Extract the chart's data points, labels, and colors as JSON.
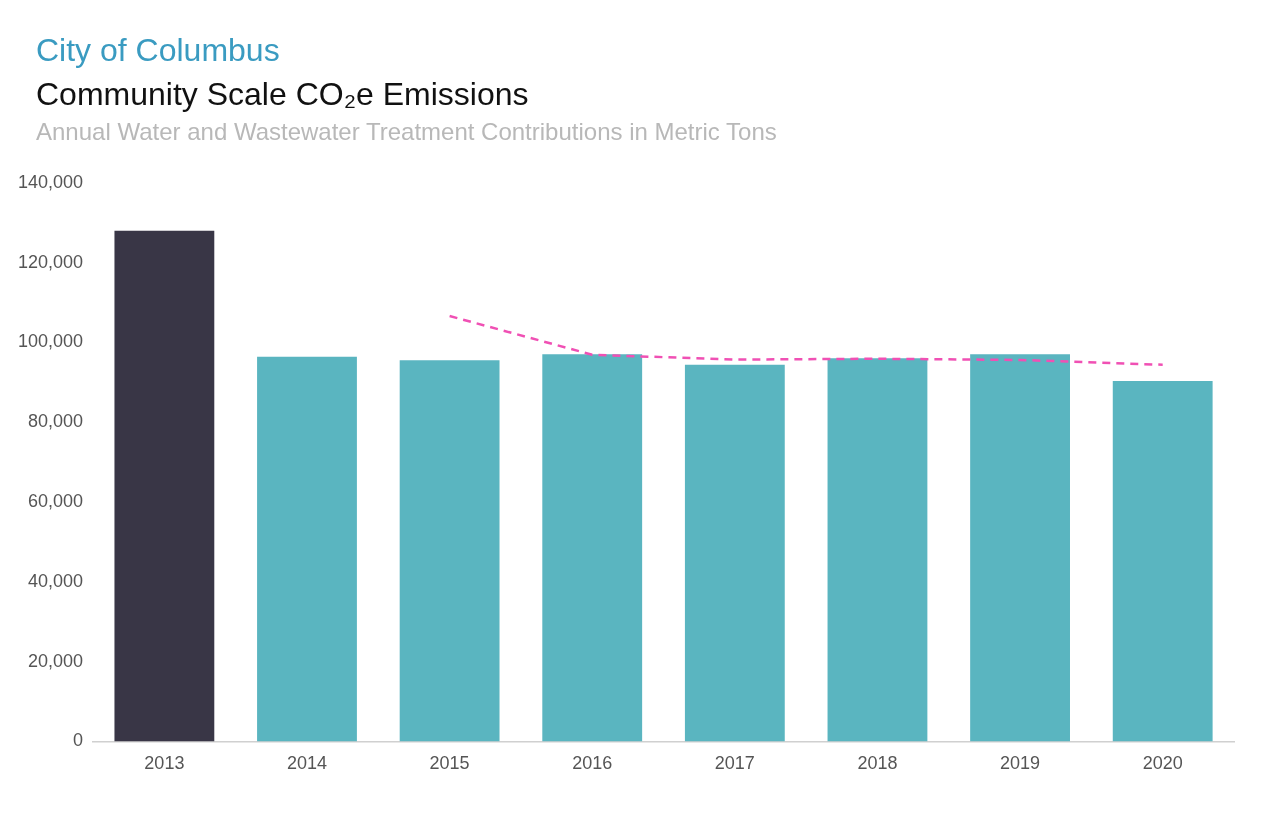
{
  "chart_data": {
    "type": "bar",
    "title": "City of Columbus",
    "subtitle": "Community Scale CO₂e Emissions",
    "annotations": [
      "Annual Water and Wastewater Treatment Contributions in Metric Tons"
    ],
    "categories": [
      "2013",
      "2014",
      "2015",
      "2016",
      "2017",
      "2018",
      "2019",
      "2020"
    ],
    "series": [
      {
        "colors": [
          "#393646",
          "#5ab5c0",
          "#5ab5c0",
          "#5ab5c0",
          "#5ab5c0",
          "#5ab5c0",
          "#5ab5c0",
          "#5ab5c0"
        ],
        "values": [
          128000,
          96400,
          95500,
          97000,
          94400,
          96000,
          97000,
          90300
        ]
      },
      {
        "type": "line",
        "color": "#f050b4",
        "line_style": "dashed",
        "values": [
          null,
          null,
          106600,
          96900,
          95700,
          95900,
          95600,
          94400
        ]
      }
    ],
    "ylim": [
      0,
      140000
    ],
    "yticks": [
      0,
      {
        "value": 20000,
        "label": "20,000"
      },
      {
        "value": 40000,
        "label": "40,000"
      },
      {
        "value": 60000,
        "label": "60,000"
      },
      {
        "value": 80000,
        "label": "80,000"
      },
      {
        "value": 100000,
        "label": "100,000"
      },
      {
        "value": 120000,
        "label": "120,000"
      },
      {
        "value": 140000,
        "label": "140,000"
      }
    ],
    "grid": false,
    "legend": false,
    "marker": "none"
  }
}
